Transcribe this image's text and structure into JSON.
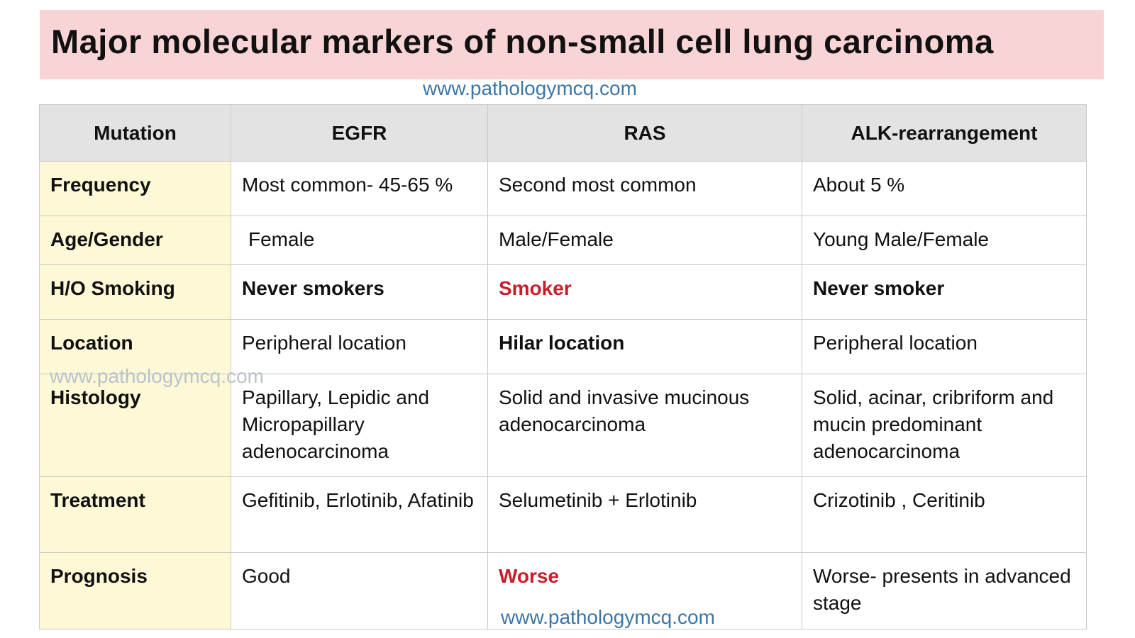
{
  "title": "Major molecular markers of non-small cell lung carcinoma",
  "watermark": "www.pathologymcq.com",
  "table": {
    "headers": [
      "Mutation",
      "EGFR",
      "RAS",
      "ALK-rearrangement"
    ],
    "rows": [
      {
        "label": "Frequency",
        "egfr": "Most common- 45-65 %",
        "ras": "Second most common",
        "alk": "About 5 %"
      },
      {
        "label": "Age/Gender",
        "egfr": "Female",
        "ras": "Male/Female",
        "alk": "Young Male/Female"
      },
      {
        "label": "H/O Smoking",
        "egfr": "Never smokers",
        "ras": "Smoker",
        "alk": "Never smoker"
      },
      {
        "label": "Location",
        "egfr": "Peripheral location",
        "ras": "Hilar location",
        "alk": "Peripheral location"
      },
      {
        "label": "Histology",
        "egfr": "Papillary, Lepidic and Micropapillary adenocarcinoma",
        "ras": "Solid and invasive mucinous adenocarcinoma",
        "alk": "Solid, acinar, cribriform and mucin predominant adenocarcinoma"
      },
      {
        "label": "Treatment",
        "egfr": "Gefitinib, Erlotinib, Afatinib",
        "ras": "Selumetinib + Erlotinib",
        "alk": "Crizotinib , Ceritinib"
      },
      {
        "label": "Prognosis",
        "egfr": "Good",
        "ras": "Worse",
        "alk": "Worse- presents in advanced stage"
      }
    ]
  },
  "colors": {
    "title_background": "#f8d4d6",
    "header_background": "#e3e3e3",
    "label_column_background": "#fdf8d6",
    "emphasis_red": "#c81e2a",
    "watermark_blue": "#3c76a6"
  }
}
